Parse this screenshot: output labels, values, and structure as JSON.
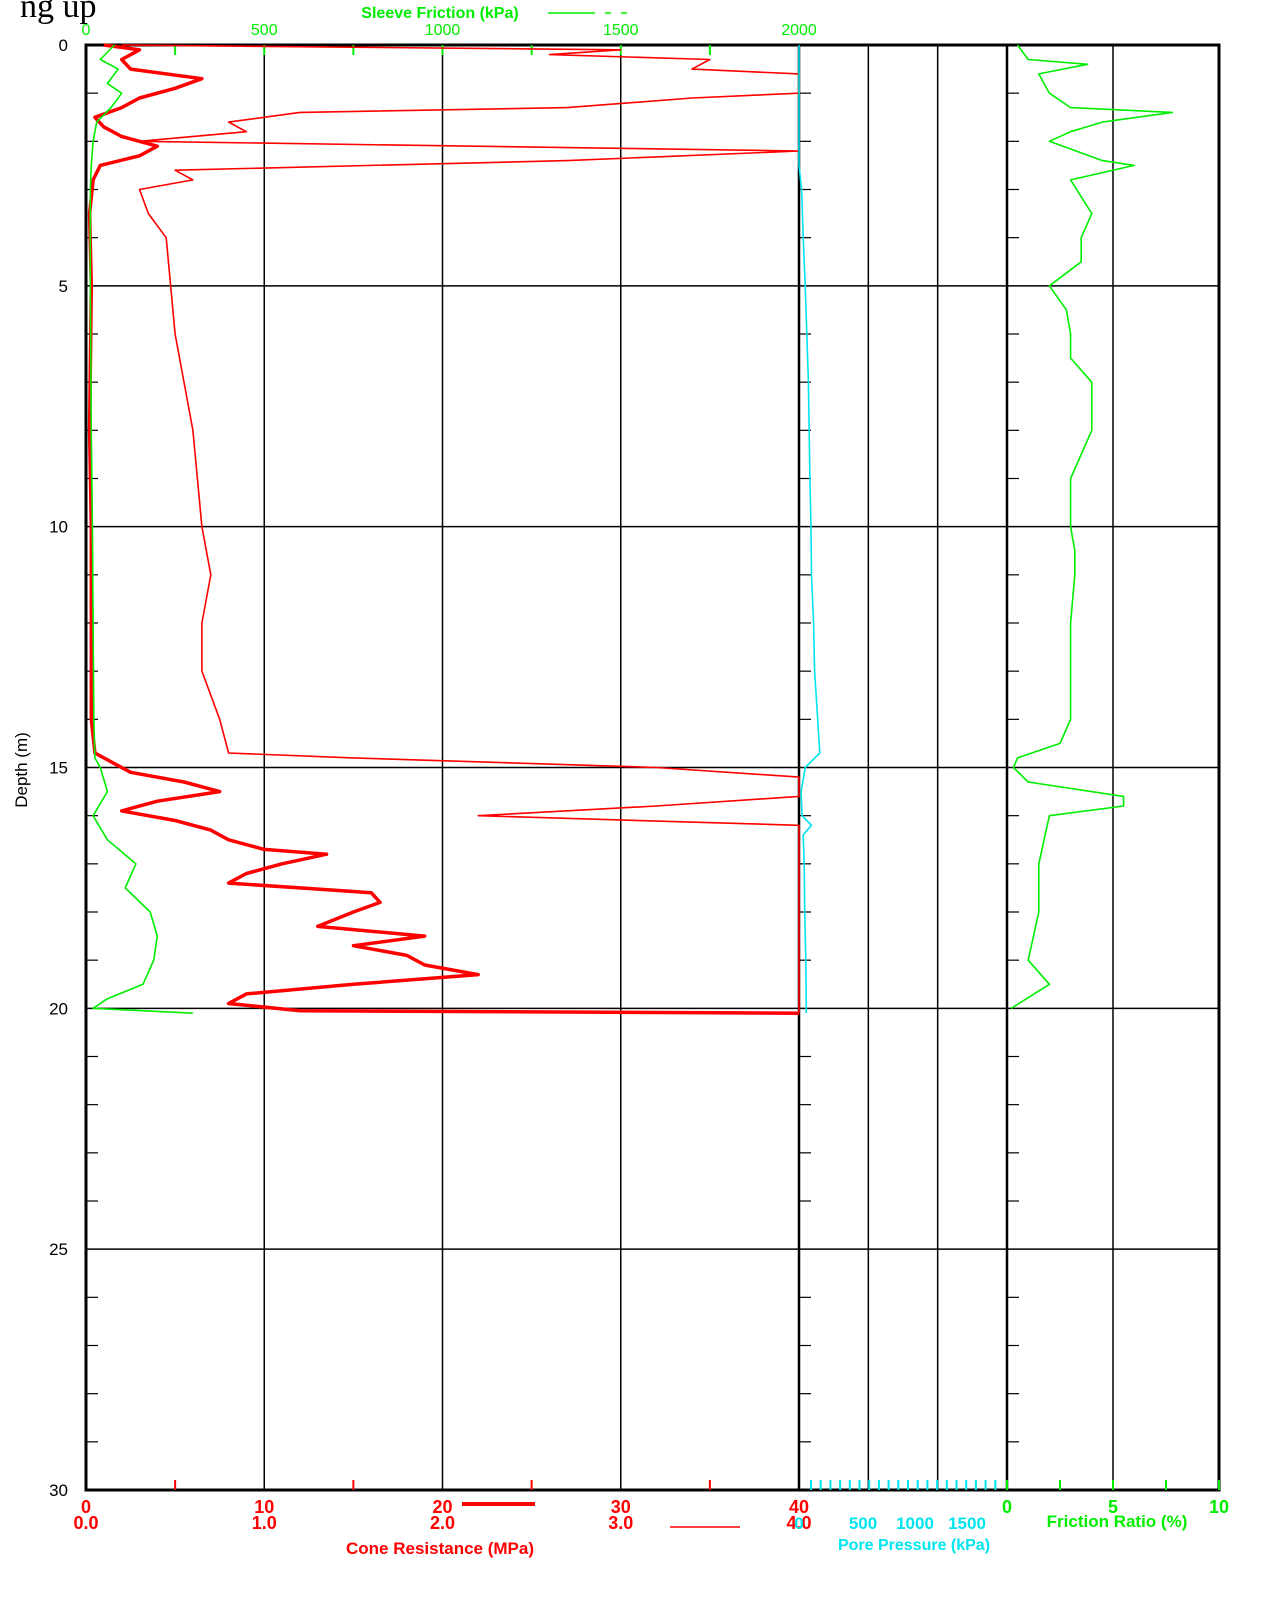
{
  "page": {
    "caption_fragment": "ng up"
  },
  "chart_data": {
    "type": "line",
    "depth_axis": {
      "label": "Depth (m)",
      "ylim": [
        0,
        30
      ],
      "ticks": [
        "0",
        "5",
        "10",
        "15",
        "20",
        "25",
        "30"
      ]
    },
    "panels": [
      {
        "name": "cone",
        "qc_axis": {
          "label": "Cone Resistance (MPa)",
          "xlim": [
            0,
            40
          ],
          "ticks": [
            "0",
            "10",
            "20",
            "30",
            "40"
          ],
          "color": "#ff0000"
        },
        "qc_axis_secondary": {
          "xlim": [
            0,
            4
          ],
          "ticks": [
            "0.0",
            "1.0",
            "2.0",
            "3.0",
            "4.0"
          ],
          "color": "#ff0000"
        },
        "fs_axis": {
          "label": "Sleeve Friction (kPa)",
          "xlim": [
            0,
            2000
          ],
          "ticks": [
            "0",
            "500",
            "1000",
            "1500",
            "2000"
          ],
          "color": "#00ee00"
        }
      },
      {
        "name": "pore",
        "u_axis": {
          "label": "Pore Pressure (kPa)",
          "xlim": [
            0,
            2000
          ],
          "ticks": [
            "0",
            "500",
            "1000",
            "1500"
          ],
          "color": "#00e5ee"
        }
      },
      {
        "name": "ratio",
        "rf_axis": {
          "label": "Friction Ratio (%)",
          "xlim": [
            0,
            10
          ],
          "ticks": [
            "0",
            "5",
            "10"
          ],
          "color": "#00ee00"
        }
      }
    ],
    "series": [
      {
        "name": "Cone Resistance (MPa)",
        "scale": "0-40",
        "color": "#ff0000",
        "style": "thick",
        "points": [
          [
            0,
            1
          ],
          [
            0.1,
            3
          ],
          [
            0.3,
            2
          ],
          [
            0.5,
            2.5
          ],
          [
            0.7,
            6.5
          ],
          [
            0.9,
            5
          ],
          [
            1.1,
            3
          ],
          [
            1.3,
            2
          ],
          [
            1.5,
            0.5
          ],
          [
            1.7,
            1
          ],
          [
            1.9,
            2
          ],
          [
            2.1,
            4
          ],
          [
            2.3,
            3
          ],
          [
            2.5,
            0.8
          ],
          [
            2.8,
            0.4
          ],
          [
            3.5,
            0.2
          ],
          [
            5,
            0.3
          ],
          [
            8,
            0.2
          ],
          [
            10,
            0.3
          ],
          [
            12,
            0.3
          ],
          [
            14,
            0.3
          ],
          [
            14.7,
            0.5
          ],
          [
            14.9,
            1.5
          ],
          [
            15.1,
            2.5
          ],
          [
            15.3,
            5.5
          ],
          [
            15.5,
            7.5
          ],
          [
            15.7,
            4
          ],
          [
            15.9,
            2
          ],
          [
            16.1,
            5
          ],
          [
            16.3,
            7
          ],
          [
            16.5,
            8
          ],
          [
            16.7,
            10
          ],
          [
            16.8,
            13.5
          ],
          [
            17,
            11
          ],
          [
            17.2,
            9
          ],
          [
            17.4,
            8
          ],
          [
            17.6,
            16
          ],
          [
            17.8,
            16.5
          ],
          [
            18,
            15
          ],
          [
            18.3,
            13
          ],
          [
            18.5,
            19
          ],
          [
            18.7,
            15
          ],
          [
            18.9,
            18
          ],
          [
            19.1,
            19
          ],
          [
            19.3,
            22
          ],
          [
            19.5,
            15
          ],
          [
            19.7,
            9
          ],
          [
            19.9,
            8
          ],
          [
            20.05,
            12
          ],
          [
            20.1,
            40
          ]
        ]
      },
      {
        "name": "Cone Resistance (MPa) secondary",
        "scale": "0-4",
        "color": "#ff0000",
        "style": "thin",
        "points": [
          [
            0,
            0.2
          ],
          [
            0.1,
            3
          ],
          [
            0.2,
            2.6
          ],
          [
            0.3,
            3.5
          ],
          [
            0.5,
            3.4
          ],
          [
            0.6,
            4.0
          ],
          [
            1.0,
            4.0
          ],
          [
            1.1,
            3.4
          ],
          [
            1.3,
            2.7
          ],
          [
            1.4,
            1.2
          ],
          [
            1.6,
            0.8
          ],
          [
            1.8,
            0.9
          ],
          [
            2.0,
            0.3
          ],
          [
            2.2,
            4.0
          ],
          [
            2.4,
            2.7
          ],
          [
            2.6,
            0.5
          ],
          [
            2.8,
            0.6
          ],
          [
            3.0,
            0.3
          ],
          [
            3.5,
            0.35
          ],
          [
            4.0,
            0.45
          ],
          [
            6,
            0.5
          ],
          [
            8,
            0.6
          ],
          [
            10,
            0.65
          ],
          [
            11,
            0.7
          ],
          [
            12,
            0.65
          ],
          [
            13,
            0.65
          ],
          [
            14,
            0.75
          ],
          [
            14.7,
            0.8
          ],
          [
            14.8,
            1.5
          ],
          [
            15.0,
            3.2
          ],
          [
            15.2,
            4.0
          ],
          [
            15.4,
            4.0
          ],
          [
            15.6,
            4.0
          ],
          [
            15.8,
            3.2
          ],
          [
            16.0,
            2.2
          ],
          [
            16.2,
            4.0
          ],
          [
            20.1,
            4.0
          ]
        ]
      },
      {
        "name": "Sleeve Friction (kPa)",
        "scale": "0-2000",
        "color": "#00ee00",
        "style": "thin",
        "points": [
          [
            0,
            80
          ],
          [
            0.3,
            40
          ],
          [
            0.5,
            90
          ],
          [
            0.8,
            60
          ],
          [
            1.0,
            100
          ],
          [
            1.3,
            70
          ],
          [
            1.6,
            30
          ],
          [
            2.0,
            20
          ],
          [
            2.5,
            15
          ],
          [
            3,
            12
          ],
          [
            5,
            12
          ],
          [
            8,
            15
          ],
          [
            10,
            18
          ],
          [
            12,
            20
          ],
          [
            14,
            22
          ],
          [
            14.8,
            25
          ],
          [
            15.0,
            40
          ],
          [
            15.5,
            60
          ],
          [
            16,
            20
          ],
          [
            16.5,
            60
          ],
          [
            17,
            140
          ],
          [
            17.5,
            110
          ],
          [
            18,
            180
          ],
          [
            18.5,
            200
          ],
          [
            19,
            190
          ],
          [
            19.5,
            160
          ],
          [
            19.8,
            60
          ],
          [
            20.0,
            20
          ],
          [
            20.1,
            300
          ]
        ]
      },
      {
        "name": "Pore Pressure (kPa)",
        "scale": "0-2000",
        "color": "#00e5ee",
        "style": "thin",
        "points": [
          [
            0,
            0
          ],
          [
            2.5,
            0
          ],
          [
            3,
            25
          ],
          [
            4,
            40
          ],
          [
            5,
            60
          ],
          [
            7,
            90
          ],
          [
            9,
            105
          ],
          [
            10,
            115
          ],
          [
            11,
            120
          ],
          [
            12,
            140
          ],
          [
            13,
            150
          ],
          [
            14,
            180
          ],
          [
            14.7,
            200
          ],
          [
            15.0,
            60
          ],
          [
            15.5,
            20
          ],
          [
            16.0,
            30
          ],
          [
            16.2,
            120
          ],
          [
            16.4,
            40
          ],
          [
            17,
            50
          ],
          [
            18,
            55
          ],
          [
            19,
            65
          ],
          [
            20,
            70
          ],
          [
            20.1,
            70
          ]
        ]
      },
      {
        "name": "Friction Ratio (%)",
        "scale": "0-10",
        "color": "#00ee00",
        "style": "thin",
        "points": [
          [
            0,
            0.5
          ],
          [
            0.3,
            1
          ],
          [
            0.4,
            3.8
          ],
          [
            0.6,
            1.5
          ],
          [
            1.0,
            2.0
          ],
          [
            1.3,
            3.0
          ],
          [
            1.4,
            7.8
          ],
          [
            1.6,
            4.5
          ],
          [
            1.8,
            3.0
          ],
          [
            2.0,
            2.0
          ],
          [
            2.4,
            4.5
          ],
          [
            2.5,
            6.0
          ],
          [
            2.8,
            3.0
          ],
          [
            3.5,
            4.0
          ],
          [
            4.0,
            3.5
          ],
          [
            4.5,
            3.5
          ],
          [
            5,
            2.0
          ],
          [
            5.5,
            2.8
          ],
          [
            6,
            3.0
          ],
          [
            6.5,
            3.0
          ],
          [
            7,
            4.0
          ],
          [
            8,
            4.0
          ],
          [
            9,
            3.0
          ],
          [
            10,
            3.0
          ],
          [
            10.5,
            3.2
          ],
          [
            11,
            3.2
          ],
          [
            12,
            3.0
          ],
          [
            13,
            3.0
          ],
          [
            14,
            3.0
          ],
          [
            14.5,
            2.5
          ],
          [
            14.8,
            0.5
          ],
          [
            15.0,
            0.3
          ],
          [
            15.3,
            1.0
          ],
          [
            15.6,
            5.5
          ],
          [
            15.8,
            5.5
          ],
          [
            16,
            2.0
          ],
          [
            17,
            1.5
          ],
          [
            18,
            1.5
          ],
          [
            19,
            1.0
          ],
          [
            19.5,
            2.0
          ],
          [
            20,
            0.2
          ]
        ]
      }
    ]
  }
}
